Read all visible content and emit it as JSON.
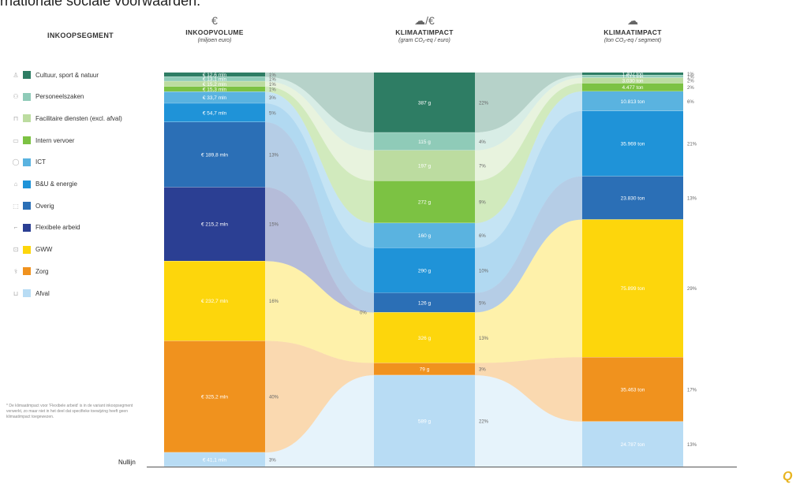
{
  "intro_text": "rnationale sociale voorwaarden.",
  "legend": {
    "title": "INKOOPSEGMENT",
    "footnote": "* De klimaatimpact voor 'Flexibele arbeid' is in de variant inkoopsegment verwerkt, zo maar niet in het deel dat specifieke toewijzing heeft geen klimaatimpact toegewezen."
  },
  "columns": {
    "volume": {
      "icon": "euro-icon",
      "symbol": "€",
      "title": "INKOOPVOLUME",
      "subtitle": "(miljoen euro)"
    },
    "intensity": {
      "icon": "cloud-per-euro-icon",
      "symbol": "☁/€",
      "title": "KLIMAATIMPACT",
      "subtitle": "(gram CO₂-eq / euro)"
    },
    "total": {
      "icon": "cloud-icon",
      "symbol": "☁",
      "title": "KLIMAATIMPACT",
      "subtitle": "(ton CO₂-eq / segment)"
    }
  },
  "baseline_label": "Nullijn",
  "logo_text": "Q",
  "chart_data": {
    "type": "stacked-bar-flow",
    "segments": [
      {
        "name": "Cultuur, sport & natuur",
        "color": "#2e7d64",
        "volume": 12.6,
        "volume_label": "€ 12,6 mln",
        "volume_pct": "1%",
        "intensity": 387,
        "intensity_label": "387 g",
        "intensity_pct": "22%",
        "total": 1407,
        "total_label": "1.407 ton",
        "total_pct": "1%"
      },
      {
        "name": "Personeelszaken",
        "color": "#8fcbb8",
        "volume": 13.1,
        "volume_label": "€ 13,1 mln",
        "volume_pct": "1%",
        "intensity": 115,
        "intensity_label": "115 g",
        "intensity_pct": "4%",
        "total": 1513,
        "total_label": "1.513 ton",
        "total_pct": "1%"
      },
      {
        "name": "Facilitaire diensten (excl. afval)",
        "color": "#bcdca0",
        "volume": 15.2,
        "volume_label": "€ 15,2 mln",
        "volume_pct": "1%",
        "intensity": 197,
        "intensity_label": "197 g",
        "intensity_pct": "7%",
        "total": 3030,
        "total_label": "3.030 ton",
        "total_pct": "2%"
      },
      {
        "name": "Intern vervoer",
        "color": "#7cc243",
        "volume": 15.3,
        "volume_label": "€ 15,3 mln",
        "volume_pct": "1%",
        "intensity": 272,
        "intensity_label": "272 g",
        "intensity_pct": "9%",
        "total": 4477,
        "total_label": "4.477 ton",
        "total_pct": "2%"
      },
      {
        "name": "ICT",
        "color": "#5ab3e0",
        "volume": 33.7,
        "volume_label": "€ 33,7 mln",
        "volume_pct": "3%",
        "intensity": 160,
        "intensity_label": "160 g",
        "intensity_pct": "6%",
        "total": 10813,
        "total_label": "10.813 ton",
        "total_pct": "6%"
      },
      {
        "name": "B&U & energie",
        "color": "#1f93d8",
        "volume": 54.7,
        "volume_label": "€ 54,7 mln",
        "volume_pct": "5%",
        "intensity": 290,
        "intensity_label": "290 g",
        "intensity_pct": "10%",
        "total": 35969,
        "total_label": "35.969 ton",
        "total_pct": "21%"
      },
      {
        "name": "Overig",
        "color": "#2b6fb6",
        "volume": 189.8,
        "volume_label": "€ 189,8 mln",
        "volume_pct": "13%",
        "intensity": 126,
        "intensity_label": "126 g",
        "intensity_pct": "5%",
        "total": 23830,
        "total_label": "23.830 ton",
        "total_pct": "13%"
      },
      {
        "name": "Flexibele arbeid",
        "color": "#2b3f93",
        "volume": 215.2,
        "volume_label": "€ 215,2 mln",
        "volume_pct": "15%",
        "intensity": 0,
        "intensity_label": "",
        "intensity_pct": "0%",
        "total": 0,
        "total_label": "",
        "total_pct": ""
      },
      {
        "name": "GWW",
        "color": "#fdd60c",
        "volume": 232.7,
        "volume_label": "€ 232,7 mln",
        "volume_pct": "16%",
        "intensity": 326,
        "intensity_label": "326 g",
        "intensity_pct": "13%",
        "total": 75899,
        "total_label": "75.899 ton",
        "total_pct": "29%"
      },
      {
        "name": "Zorg",
        "color": "#f0921e",
        "volume": 325.2,
        "volume_label": "€ 325,2 mln",
        "volume_pct": "40%",
        "intensity": 79,
        "intensity_label": "79 g",
        "intensity_pct": "3%",
        "total": 35463,
        "total_label": "35.463 ton",
        "total_pct": "17%"
      },
      {
        "name": "Afval",
        "color": "#b8dcf4",
        "volume": 41.1,
        "volume_label": "€ 41,1 mln",
        "volume_pct": "3%",
        "intensity": 589,
        "intensity_label": "589 g",
        "intensity_pct": "22%",
        "total": 24787,
        "total_label": "24.787 ton",
        "total_pct": "13%"
      }
    ]
  }
}
